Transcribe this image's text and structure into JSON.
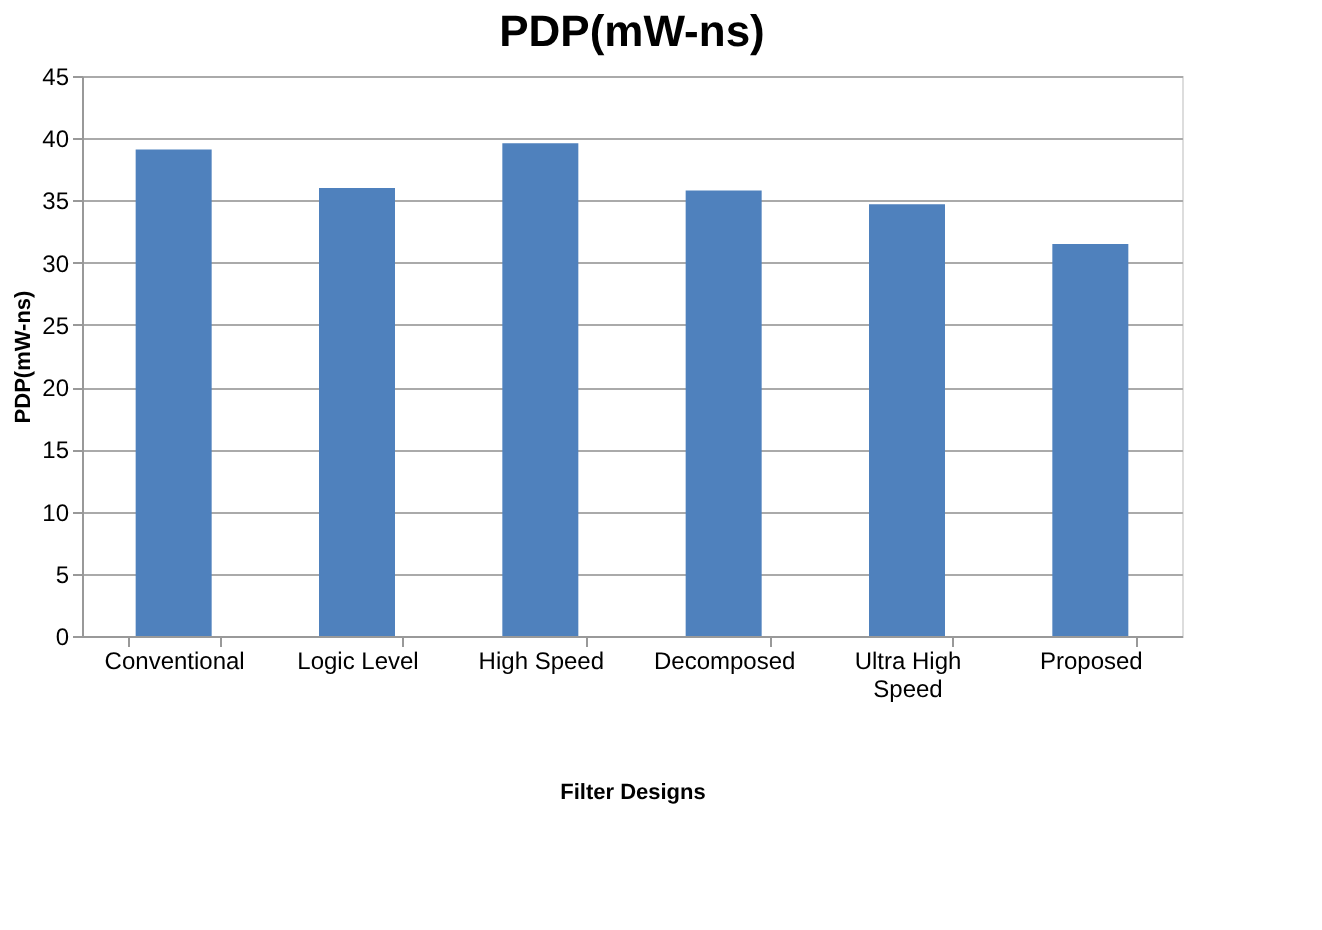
{
  "chart_data": {
    "type": "bar",
    "title": "PDP(mW-ns)",
    "xlabel": "Filter Designs",
    "ylabel": "PDP(mW-ns)",
    "categories": [
      "Conventional",
      "Logic Level",
      "High Speed",
      "Decomposed",
      "Ultra High Speed",
      "Proposed"
    ],
    "values": [
      39.1,
      36.0,
      39.6,
      35.8,
      34.7,
      31.5
    ],
    "color": "#4f81bd",
    "ylim": [
      0,
      45
    ],
    "yticks": [
      0,
      5,
      10,
      15,
      20,
      25,
      30,
      35,
      40,
      45
    ],
    "grid": "y"
  }
}
